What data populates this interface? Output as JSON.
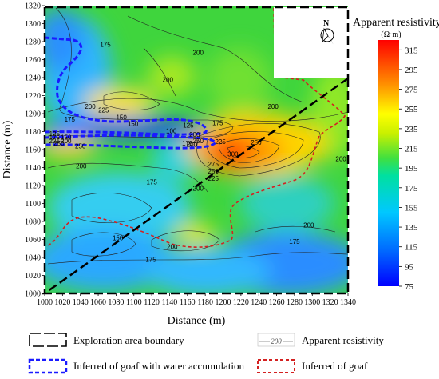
{
  "chart_data": {
    "type": "heatmap",
    "title": "",
    "xlabel": "Distance (m)",
    "ylabel": "Distance (m)",
    "xlim": [
      1000,
      1340
    ],
    "ylim": [
      1000,
      1320
    ],
    "x_ticks": [
      "1000",
      "1020",
      "1040",
      "1060",
      "1080",
      "1100",
      "1120",
      "1140",
      "1160",
      "1180",
      "1200",
      "1220",
      "1240",
      "1260",
      "1280",
      "1300",
      "1320",
      "1340"
    ],
    "y_ticks": [
      "1000",
      "1020",
      "1040",
      "1060",
      "1080",
      "1100",
      "1120",
      "1140",
      "1160",
      "1180",
      "1200",
      "1220",
      "1240",
      "1260",
      "1280",
      "1300",
      "1320"
    ],
    "colorbar": {
      "title": "Apparent resistivity",
      "unit": "(Ω·m)",
      "min": 75,
      "max": 325,
      "ticks": [
        "315",
        "295",
        "275",
        "255",
        "235",
        "215",
        "195",
        "175",
        "155",
        "135",
        "115",
        "95",
        "75"
      ]
    },
    "contour_labels": [
      {
        "x": 1068,
        "y": 1277,
        "value": "175"
      },
      {
        "x": 1172,
        "y": 1268,
        "value": "200"
      },
      {
        "x": 1138,
        "y": 1238,
        "value": "200"
      },
      {
        "x": 1051,
        "y": 1208,
        "value": "200"
      },
      {
        "x": 1066,
        "y": 1204,
        "value": "225"
      },
      {
        "x": 1086,
        "y": 1196,
        "value": "150"
      },
      {
        "x": 1028,
        "y": 1194,
        "value": "175"
      },
      {
        "x": 1099,
        "y": 1189,
        "value": "150"
      },
      {
        "x": 1161,
        "y": 1187,
        "value": "125"
      },
      {
        "x": 1194,
        "y": 1190,
        "value": "175"
      },
      {
        "x": 1142,
        "y": 1181,
        "value": "100"
      },
      {
        "x": 1011,
        "y": 1178,
        "value": "125"
      },
      {
        "x": 1011,
        "y": 1174,
        "value": "175"
      },
      {
        "x": 1024,
        "y": 1174,
        "value": "150"
      },
      {
        "x": 1011,
        "y": 1170,
        "value": "225"
      },
      {
        "x": 1024,
        "y": 1170,
        "value": "200"
      },
      {
        "x": 1016,
        "y": 1167,
        "value": "250"
      },
      {
        "x": 1040,
        "y": 1164,
        "value": "250"
      },
      {
        "x": 1168,
        "y": 1177,
        "value": "200"
      },
      {
        "x": 1172,
        "y": 1170,
        "value": "250"
      },
      {
        "x": 1160,
        "y": 1167,
        "value": "175"
      },
      {
        "x": 1165,
        "y": 1166,
        "value": "200"
      },
      {
        "x": 1197,
        "y": 1169,
        "value": "225"
      },
      {
        "x": 1237,
        "y": 1168,
        "value": "250"
      },
      {
        "x": 1211,
        "y": 1155,
        "value": "300"
      },
      {
        "x": 1189,
        "y": 1144,
        "value": "275"
      },
      {
        "x": 1189,
        "y": 1136,
        "value": "250"
      },
      {
        "x": 1189,
        "y": 1128,
        "value": "225"
      },
      {
        "x": 1172,
        "y": 1117,
        "value": "200"
      },
      {
        "x": 1041,
        "y": 1142,
        "value": "200"
      },
      {
        "x": 1120,
        "y": 1124,
        "value": "175"
      },
      {
        "x": 1332,
        "y": 1150,
        "value": "200"
      },
      {
        "x": 1256,
        "y": 1208,
        "value": "200"
      },
      {
        "x": 1082,
        "y": 1062,
        "value": "150"
      },
      {
        "x": 1143,
        "y": 1052,
        "value": "200"
      },
      {
        "x": 1119,
        "y": 1038,
        "value": "175"
      },
      {
        "x": 1280,
        "y": 1058,
        "value": "175"
      },
      {
        "x": 1296,
        "y": 1076,
        "value": "200"
      }
    ],
    "regions": [
      {
        "name": "Exploration area boundary"
      },
      {
        "name": "Inferred of goaf with water accumulation"
      },
      {
        "name": "Inferred of goaf"
      }
    ],
    "north_label": "N",
    "legend": [
      {
        "label": "Exploration area boundary",
        "style": "black-dashed-box"
      },
      {
        "label": "Apparent resistivity",
        "sample": "200",
        "style": "contour-line"
      },
      {
        "label": "Inferred of goaf with water accumulation",
        "style": "blue-dashed-box"
      },
      {
        "label": "Inferred of goaf",
        "style": "red-dashed-box"
      }
    ],
    "colors": {
      "accent_blue": "#1a1aff",
      "accent_red": "#d42020",
      "boundary": "#000000"
    }
  }
}
